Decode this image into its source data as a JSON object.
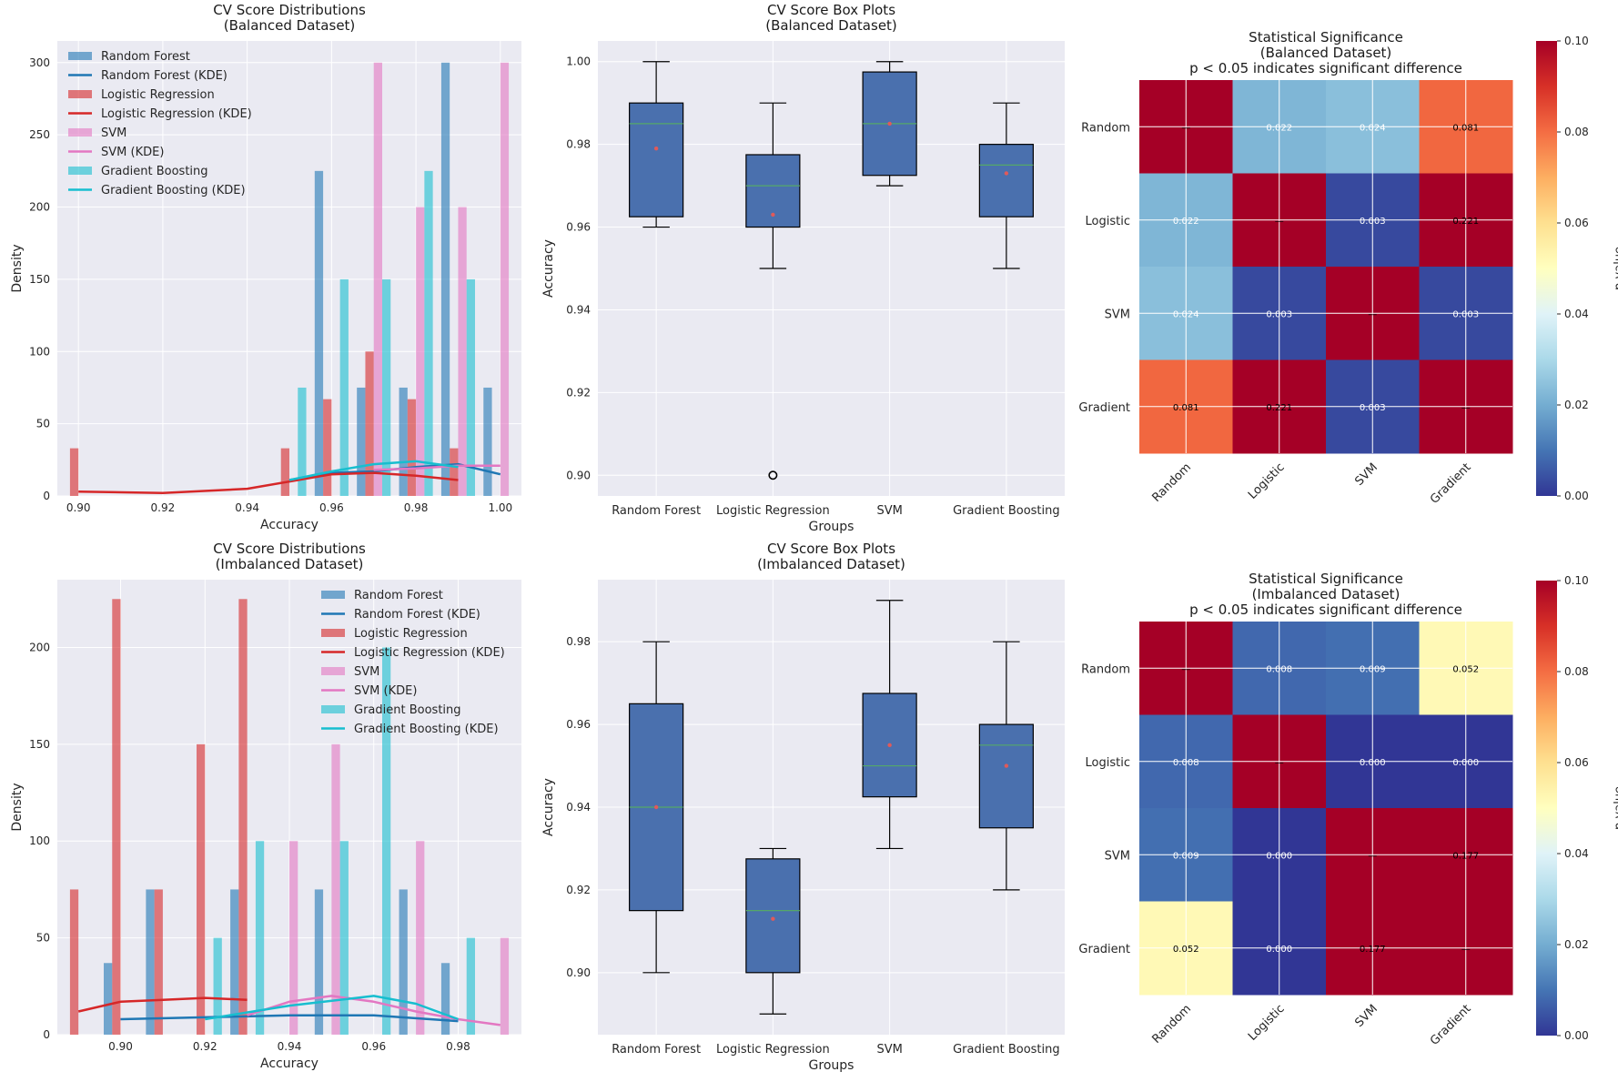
{
  "chart_data": [
    {
      "type": "histogram",
      "title": "CV Score Distributions\n(Balanced Dataset)",
      "xlabel": "Accuracy",
      "ylabel": "Density",
      "xlim": [
        0.895,
        1.005
      ],
      "ylim": [
        0,
        315
      ],
      "xticks": [
        "0.90",
        "0.92",
        "0.94",
        "0.96",
        "0.98",
        "1.00"
      ],
      "yticks": [
        "0",
        "50",
        "100",
        "150",
        "200",
        "250",
        "300"
      ],
      "legend_position": "upper-left",
      "series": [
        {
          "name": "Random Forest",
          "color": "#1f77b4",
          "bars": [
            [
              0.96,
              225
            ],
            [
              0.97,
              75
            ],
            [
              0.98,
              75
            ],
            [
              0.99,
              300
            ],
            [
              1.0,
              75
            ]
          ],
          "kde_name": "Random Forest (KDE)",
          "kde": [
            [
              0.95,
              11
            ],
            [
              0.96,
              16
            ],
            [
              0.97,
              17
            ],
            [
              0.98,
              20
            ],
            [
              0.99,
              22
            ],
            [
              1.0,
              15
            ]
          ]
        },
        {
          "name": "Logistic Regression",
          "color": "#d62728",
          "bars": [
            [
              0.9,
              33
            ],
            [
              0.95,
              33
            ],
            [
              0.96,
              67
            ],
            [
              0.97,
              100
            ],
            [
              0.98,
              67
            ],
            [
              0.99,
              33
            ]
          ],
          "kde_name": "Logistic Regression (KDE)",
          "kde": [
            [
              0.9,
              3
            ],
            [
              0.92,
              2
            ],
            [
              0.94,
              5
            ],
            [
              0.96,
              15
            ],
            [
              0.97,
              16
            ],
            [
              0.98,
              14
            ],
            [
              0.99,
              11
            ]
          ]
        },
        {
          "name": "SVM",
          "color": "#e377c2",
          "bars": [
            [
              0.97,
              300
            ],
            [
              0.98,
              200
            ],
            [
              0.99,
              200
            ],
            [
              1.0,
              300
            ]
          ],
          "kde_name": "SVM (KDE)",
          "kde": [
            [
              0.97,
              18
            ],
            [
              0.98,
              19
            ],
            [
              0.99,
              21
            ],
            [
              1.0,
              21
            ]
          ]
        },
        {
          "name": "Gradient Boosting",
          "color": "#17becf",
          "bars": [
            [
              0.95,
              75
            ],
            [
              0.96,
              150
            ],
            [
              0.97,
              150
            ],
            [
              0.98,
              225
            ],
            [
              0.99,
              150
            ]
          ],
          "kde_name": "Gradient Boosting (KDE)",
          "kde": [
            [
              0.95,
              11
            ],
            [
              0.96,
              17
            ],
            [
              0.97,
              22
            ],
            [
              0.98,
              24
            ],
            [
              0.99,
              20
            ]
          ]
        }
      ]
    },
    {
      "type": "box",
      "title": "CV Score Box Plots\n(Balanced Dataset)",
      "xlabel": "Groups",
      "ylabel": "Accuracy",
      "ylim": [
        0.895,
        1.005
      ],
      "yticks": [
        "0.90",
        "0.92",
        "0.94",
        "0.96",
        "0.98",
        "1.00"
      ],
      "categories": [
        "Random Forest",
        "Logistic Regression",
        "SVM",
        "Gradient Boosting"
      ],
      "boxes": [
        {
          "min": 0.96,
          "q1": 0.9625,
          "median": 0.985,
          "q3": 0.99,
          "max": 1.0,
          "mean": 0.979,
          "outliers": []
        },
        {
          "min": 0.95,
          "q1": 0.96,
          "median": 0.97,
          "q3": 0.9775,
          "max": 0.99,
          "mean": 0.963,
          "outliers": [
            0.9
          ]
        },
        {
          "min": 0.97,
          "q1": 0.9725,
          "median": 0.985,
          "q3": 0.9975,
          "max": 1.0,
          "mean": 0.985,
          "outliers": []
        },
        {
          "min": 0.95,
          "q1": 0.9625,
          "median": 0.975,
          "q3": 0.98,
          "max": 0.99,
          "mean": 0.973,
          "outliers": []
        }
      ]
    },
    {
      "type": "heatmap",
      "title": "Statistical Significance\n(Balanced Dataset)\np < 0.05 indicates significant difference",
      "labels": [
        "Random",
        "Logistic",
        "SVM",
        "Gradient"
      ],
      "matrix": [
        [
          1.0,
          0.022,
          0.024,
          0.081
        ],
        [
          0.022,
          1.0,
          0.003,
          0.221
        ],
        [
          0.024,
          0.003,
          1.0,
          0.003
        ],
        [
          0.081,
          0.221,
          0.003,
          1.0
        ]
      ],
      "cell_labels": [
        [
          "—",
          "0.022",
          "0.024",
          "0.081"
        ],
        [
          "0.022",
          "—",
          "0.003",
          "0.221"
        ],
        [
          "0.024",
          "0.003",
          "—",
          "0.003"
        ],
        [
          "0.081",
          "0.221",
          "0.003",
          "—"
        ]
      ],
      "colorbar_label": "p-value",
      "vmin": 0,
      "vmax": 0.1,
      "colorbar_ticks": [
        "0.00",
        "0.02",
        "0.04",
        "0.06",
        "0.08",
        "0.10"
      ]
    },
    {
      "type": "histogram",
      "title": "CV Score Distributions\n(Imbalanced Dataset)",
      "xlabel": "Accuracy",
      "ylabel": "Density",
      "xlim": [
        0.885,
        0.995
      ],
      "ylim": [
        0,
        235
      ],
      "xticks": [
        "0.90",
        "0.92",
        "0.94",
        "0.96",
        "0.98"
      ],
      "yticks": [
        "0",
        "50",
        "100",
        "150",
        "200"
      ],
      "legend_position": "upper-right",
      "series": [
        {
          "name": "Random Forest",
          "color": "#1f77b4",
          "bars": [
            [
              0.9,
              37
            ],
            [
              0.91,
              75
            ],
            [
              0.93,
              75
            ],
            [
              0.95,
              75
            ],
            [
              0.97,
              75
            ],
            [
              0.98,
              37
            ]
          ],
          "kde_name": "Random Forest (KDE)",
          "kde": [
            [
              0.9,
              8
            ],
            [
              0.92,
              9
            ],
            [
              0.94,
              10
            ],
            [
              0.96,
              10
            ],
            [
              0.98,
              7
            ]
          ]
        },
        {
          "name": "Logistic Regression",
          "color": "#d62728",
          "bars": [
            [
              0.89,
              75
            ],
            [
              0.9,
              225
            ],
            [
              0.91,
              75
            ],
            [
              0.92,
              150
            ],
            [
              0.93,
              225
            ]
          ],
          "kde_name": "Logistic Regression (KDE)",
          "kde": [
            [
              0.89,
              12
            ],
            [
              0.9,
              17
            ],
            [
              0.91,
              18
            ],
            [
              0.92,
              19
            ],
            [
              0.93,
              18
            ]
          ]
        },
        {
          "name": "SVM",
          "color": "#e377c2",
          "bars": [
            [
              0.94,
              100
            ],
            [
              0.95,
              150
            ],
            [
              0.97,
              100
            ],
            [
              0.99,
              50
            ]
          ],
          "kde_name": "SVM (KDE)",
          "kde": [
            [
              0.93,
              10
            ],
            [
              0.94,
              17
            ],
            [
              0.95,
              20
            ],
            [
              0.96,
              17
            ],
            [
              0.97,
              12
            ],
            [
              0.98,
              8
            ],
            [
              0.99,
              5
            ]
          ]
        },
        {
          "name": "Gradient Boosting",
          "color": "#17becf",
          "bars": [
            [
              0.92,
              50
            ],
            [
              0.93,
              100
            ],
            [
              0.95,
              100
            ],
            [
              0.96,
              200
            ],
            [
              0.98,
              50
            ]
          ],
          "kde_name": "Gradient Boosting (KDE)",
          "kde": [
            [
              0.92,
              8
            ],
            [
              0.94,
              15
            ],
            [
              0.96,
              20
            ],
            [
              0.97,
              16
            ],
            [
              0.98,
              8
            ]
          ]
        }
      ]
    },
    {
      "type": "box",
      "title": "CV Score Box Plots\n(Imbalanced Dataset)",
      "xlabel": "Groups",
      "ylabel": "Accuracy",
      "ylim": [
        0.885,
        0.995
      ],
      "yticks": [
        "0.90",
        "0.92",
        "0.94",
        "0.96",
        "0.98"
      ],
      "categories": [
        "Random Forest",
        "Logistic Regression",
        "SVM",
        "Gradient Boosting"
      ],
      "boxes": [
        {
          "min": 0.9,
          "q1": 0.915,
          "median": 0.94,
          "q3": 0.965,
          "max": 0.98,
          "mean": 0.94,
          "outliers": []
        },
        {
          "min": 0.89,
          "q1": 0.9,
          "median": 0.915,
          "q3": 0.9275,
          "max": 0.93,
          "mean": 0.913,
          "outliers": []
        },
        {
          "min": 0.93,
          "q1": 0.9425,
          "median": 0.95,
          "q3": 0.9675,
          "max": 0.99,
          "mean": 0.955,
          "outliers": []
        },
        {
          "min": 0.92,
          "q1": 0.935,
          "median": 0.955,
          "q3": 0.96,
          "max": 0.98,
          "mean": 0.95,
          "outliers": []
        }
      ]
    },
    {
      "type": "heatmap",
      "title": "Statistical Significance\n(Imbalanced Dataset)\np < 0.05 indicates significant difference",
      "labels": [
        "Random",
        "Logistic",
        "SVM",
        "Gradient"
      ],
      "matrix": [
        [
          1.0,
          0.008,
          0.009,
          0.052
        ],
        [
          0.008,
          1.0,
          0.0,
          0.0
        ],
        [
          0.009,
          0.0,
          1.0,
          0.177
        ],
        [
          0.052,
          0.0,
          0.177,
          1.0
        ]
      ],
      "cell_labels": [
        [
          "—",
          "0.008",
          "0.009",
          "0.052"
        ],
        [
          "0.008",
          "—",
          "0.000",
          "0.000"
        ],
        [
          "0.009",
          "0.000",
          "—",
          "0.177"
        ],
        [
          "0.052",
          "0.000",
          "0.177",
          "—"
        ]
      ],
      "colorbar_label": "p-value",
      "vmin": 0,
      "vmax": 0.1,
      "colorbar_ticks": [
        "0.00",
        "0.02",
        "0.04",
        "0.06",
        "0.08",
        "0.10"
      ]
    }
  ]
}
